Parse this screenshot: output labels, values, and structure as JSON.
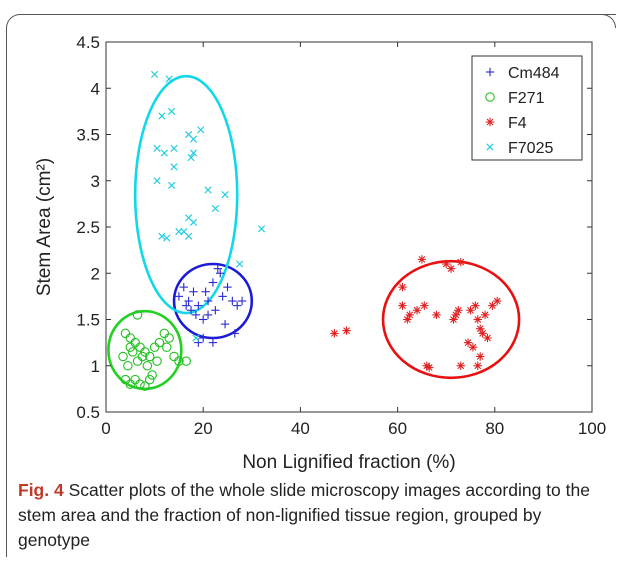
{
  "figure": {
    "label": "Fig. 4",
    "caption": "Scatter plots of the whole slide microscopy images according to the stem area and the fraction of non-lignified tissue region, grouped by genotype"
  },
  "chart_data": {
    "type": "scatter",
    "title": "",
    "xlabel": "Non Lignified fraction (%)",
    "ylabel": "Stem Area (cm²)",
    "xlim": [
      0,
      100
    ],
    "ylim": [
      0.5,
      4.5
    ],
    "xticks": [
      0,
      20,
      40,
      60,
      80,
      100
    ],
    "yticks": [
      0.5,
      1,
      1.5,
      2,
      2.5,
      3,
      3.5,
      4,
      4.5
    ],
    "xtick_labels": [
      "0",
      "20",
      "40",
      "60",
      "80",
      "100"
    ],
    "ytick_labels": [
      "0.5",
      "1",
      "1.5",
      "2",
      "2.5",
      "3",
      "3.5",
      "4",
      "4.5"
    ],
    "legend_position": "top-right",
    "series": [
      {
        "name": "Cm484",
        "marker": "plus",
        "color": "#2a2ad0",
        "ellipse": {
          "cx": 22,
          "cy": 1.7,
          "rx": 8,
          "ry": 0.4,
          "color": "#1a1ad8"
        },
        "points": [
          [
            15,
            1.75
          ],
          [
            16,
            1.85
          ],
          [
            17,
            1.7
          ],
          [
            18,
            1.8
          ],
          [
            19,
            1.65
          ],
          [
            17.5,
            1.6
          ],
          [
            20,
            1.5
          ],
          [
            21,
            1.55
          ],
          [
            22,
            1.9
          ],
          [
            23,
            2.05
          ],
          [
            23.5,
            2.0
          ],
          [
            24,
            1.75
          ],
          [
            25,
            1.85
          ],
          [
            26,
            1.7
          ],
          [
            27,
            1.65
          ],
          [
            28,
            1.7
          ],
          [
            22,
            1.25
          ],
          [
            20,
            1.3
          ],
          [
            19,
            1.25
          ],
          [
            24.5,
            1.45
          ],
          [
            26.5,
            1.35
          ],
          [
            21,
            1.7
          ],
          [
            18.5,
            1.55
          ],
          [
            16.5,
            1.65
          ],
          [
            20.5,
            1.8
          ],
          [
            22.5,
            1.6
          ]
        ]
      },
      {
        "name": "F271",
        "marker": "circle",
        "color": "#22c022",
        "ellipse": {
          "cx": 8,
          "cy": 1.17,
          "rx": 7.5,
          "ry": 0.42,
          "color": "#22d022"
        },
        "points": [
          [
            4,
            1.35
          ],
          [
            5,
            1.3
          ],
          [
            6,
            1.25
          ],
          [
            7,
            1.2
          ],
          [
            8,
            1.15
          ],
          [
            9,
            1.1
          ],
          [
            10,
            1.2
          ],
          [
            3.5,
            1.1
          ],
          [
            4.5,
            1.0
          ],
          [
            5.5,
            1.15
          ],
          [
            6.5,
            1.05
          ],
          [
            7.5,
            1.1
          ],
          [
            8.5,
            1.0
          ],
          [
            9.5,
            0.9
          ],
          [
            10.5,
            1.05
          ],
          [
            12,
            1.35
          ],
          [
            13,
            1.3
          ],
          [
            14,
            1.1
          ],
          [
            15,
            1.05
          ],
          [
            16.5,
            1.05
          ],
          [
            4,
            0.85
          ],
          [
            5,
            0.8
          ],
          [
            6,
            0.85
          ],
          [
            7,
            0.8
          ],
          [
            8,
            0.78
          ],
          [
            9,
            0.85
          ],
          [
            6.5,
            1.55
          ],
          [
            11,
            1.25
          ],
          [
            12.5,
            1.2
          ],
          [
            5,
            1.2
          ]
        ]
      },
      {
        "name": "F4",
        "marker": "asterisk",
        "color": "#e02020",
        "ellipse": {
          "cx": 71,
          "cy": 1.5,
          "rx": 14,
          "ry": 0.63,
          "color": "#e81010"
        },
        "points": [
          [
            47,
            1.35
          ],
          [
            49.5,
            1.38
          ],
          [
            61,
            1.85
          ],
          [
            61,
            1.65
          ],
          [
            62,
            1.5
          ],
          [
            62.5,
            1.55
          ],
          [
            64,
            1.6
          ],
          [
            65,
            2.15
          ],
          [
            65.5,
            1.65
          ],
          [
            66,
            1.0
          ],
          [
            66.5,
            0.98
          ],
          [
            70,
            2.1
          ],
          [
            71,
            2.05
          ],
          [
            72,
            1.55
          ],
          [
            72.5,
            1.6
          ],
          [
            73,
            2.12
          ],
          [
            73,
            1.0
          ],
          [
            74.5,
            1.25
          ],
          [
            75,
            1.6
          ],
          [
            75.5,
            1.2
          ],
          [
            76,
            1.65
          ],
          [
            76.5,
            1.5
          ],
          [
            77,
            1.4
          ],
          [
            77.5,
            1.35
          ],
          [
            77,
            1.1
          ],
          [
            78,
            1.55
          ],
          [
            78.5,
            1.3
          ],
          [
            79.5,
            1.65
          ],
          [
            80.5,
            1.7
          ],
          [
            76.5,
            1.0
          ],
          [
            68,
            1.55
          ],
          [
            71.5,
            1.5
          ]
        ]
      },
      {
        "name": "F7025",
        "marker": "x",
        "color": "#22cce0",
        "ellipse": {
          "cx": 16.5,
          "cy": 2.85,
          "rx": 10.5,
          "ry": 1.28,
          "color": "#11d8e8"
        },
        "points": [
          [
            10,
            4.15
          ],
          [
            13,
            4.1
          ],
          [
            11.5,
            3.7
          ],
          [
            13.5,
            3.75
          ],
          [
            10.5,
            3.35
          ],
          [
            12,
            3.3
          ],
          [
            14,
            3.35
          ],
          [
            17,
            3.5
          ],
          [
            18,
            3.45
          ],
          [
            19.5,
            3.55
          ],
          [
            14,
            3.15
          ],
          [
            13.5,
            2.95
          ],
          [
            10.5,
            3.0
          ],
          [
            17.5,
            3.25
          ],
          [
            18,
            3.3
          ],
          [
            21,
            2.9
          ],
          [
            24.5,
            2.85
          ],
          [
            17,
            2.6
          ],
          [
            18,
            2.55
          ],
          [
            22.5,
            2.7
          ],
          [
            16,
            2.45
          ],
          [
            15,
            2.45
          ],
          [
            17,
            2.4
          ],
          [
            11.5,
            2.4
          ],
          [
            12.5,
            2.38
          ],
          [
            32,
            2.48
          ],
          [
            27.5,
            2.1
          ],
          [
            18.5,
            1.3
          ]
        ]
      }
    ]
  }
}
